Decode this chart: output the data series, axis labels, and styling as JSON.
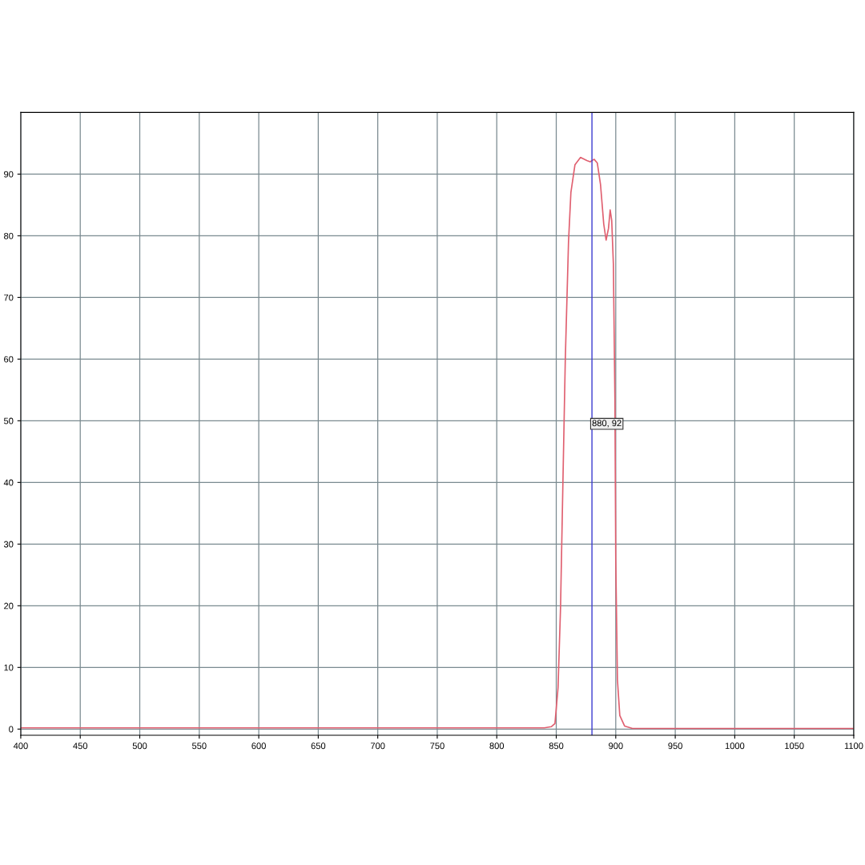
{
  "chart_data": {
    "type": "line",
    "x": [
      400,
      450,
      500,
      550,
      600,
      650,
      700,
      750,
      800,
      840,
      846,
      848.9,
      851.5,
      853.6,
      855.6,
      857.6,
      860.3,
      862.3,
      865.7,
      870.4,
      875.8,
      878.5,
      881.8,
      884.5,
      887.2,
      889.9,
      891.9,
      893.9,
      895.3,
      896.6,
      898,
      899.3,
      900,
      901.4,
      903.4,
      907.4,
      914,
      950,
      1000,
      1050,
      1100
    ],
    "series": [
      {
        "color": "#e06070",
        "values": [
          0.2,
          0.2,
          0.2,
          0.2,
          0.2,
          0.2,
          0.2,
          0.2,
          0.2,
          0.2,
          0.4,
          0.9,
          6.7,
          19.7,
          40,
          60,
          79,
          87,
          91.5,
          92.7,
          92.2,
          92,
          92.4,
          91.8,
          88.3,
          81.9,
          79.3,
          81.2,
          84.2,
          82.5,
          75.4,
          53.4,
          27.5,
          8,
          2.2,
          0.5,
          0.1,
          0.1,
          0.1,
          0.1,
          0.1
        ]
      }
    ],
    "xlim": [
      400,
      1100
    ],
    "ylim": [
      -1,
      100
    ],
    "xticks": [
      400,
      450,
      500,
      550,
      600,
      650,
      700,
      750,
      800,
      850,
      900,
      950,
      1000,
      1050,
      1100
    ],
    "yticks": [
      0,
      10,
      20,
      30,
      40,
      50,
      60,
      70,
      80,
      90
    ],
    "grid": true,
    "legend": false,
    "marker": "none",
    "line_style": "solid",
    "ref_lines": [
      {
        "axis": "x",
        "value": 880,
        "label": "880, 92",
        "color": "#3a3ad0"
      }
    ]
  }
}
